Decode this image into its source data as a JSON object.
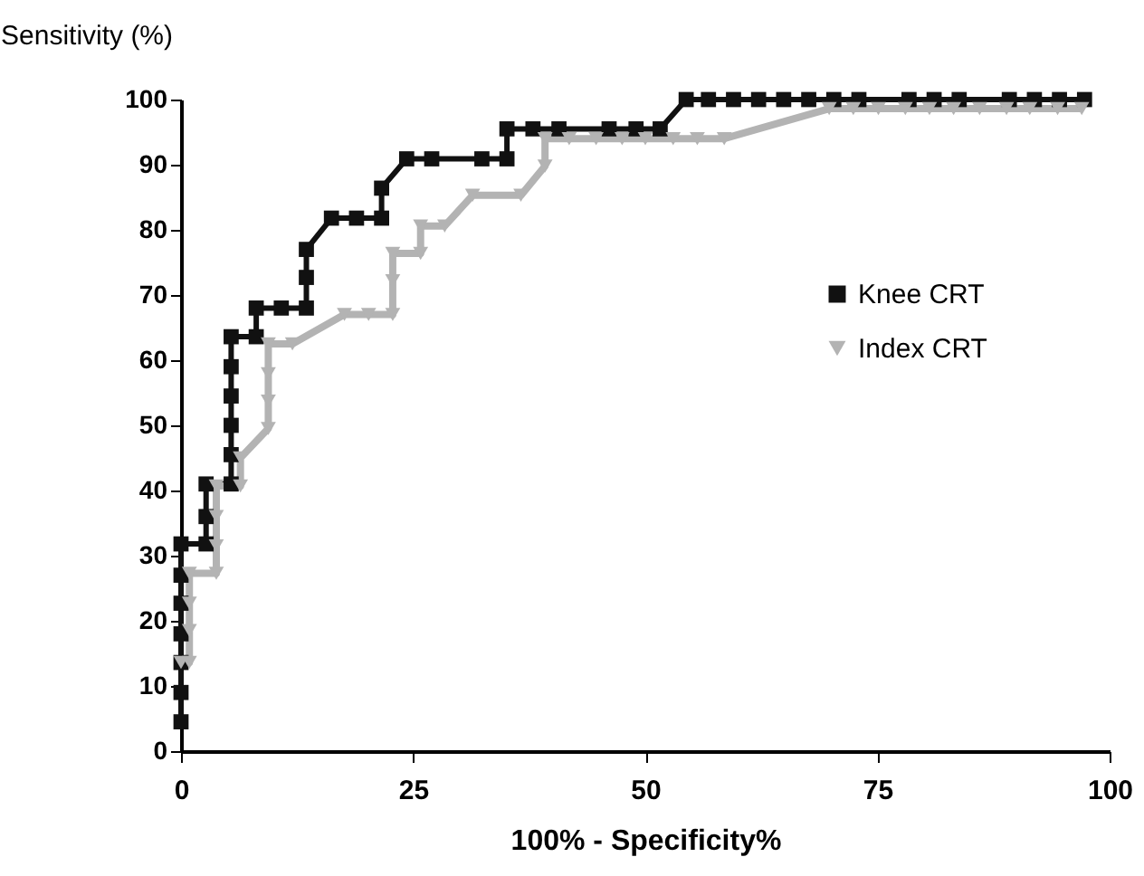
{
  "chart_data": {
    "type": "line",
    "xlabel": "100% - Specificity%",
    "ylabel": "Sensitivity (%)",
    "xlim": [
      0,
      100
    ],
    "ylim": [
      0,
      100
    ],
    "xticks": [
      0,
      25,
      50,
      75,
      100
    ],
    "yticks": [
      0,
      10,
      20,
      30,
      40,
      50,
      60,
      70,
      80,
      90,
      100
    ],
    "grid": false,
    "legend": "right",
    "series": [
      {
        "name": "Knee CRT",
        "color": "#111111",
        "marker": "square",
        "line_style": "solid",
        "x": [
          0,
          0,
          0,
          0,
          0,
          0,
          0,
          2.7,
          2.7,
          2.7,
          5.4,
          5.4,
          5.4,
          5.4,
          5.4,
          5.4,
          8.1,
          8.1,
          10.8,
          13.5,
          13.5,
          13.5,
          16.2,
          18.9,
          21.6,
          21.6,
          24.3,
          27,
          32.4,
          35.1,
          35.1,
          37.9,
          40.7,
          46.1,
          49,
          51.6,
          54.4,
          56.8,
          59.5,
          62.2,
          64.9,
          67.6,
          70.3,
          73,
          78.4,
          81.1,
          83.8,
          89.2,
          91.9,
          94.6,
          97.3
        ],
        "values": [
          4.5,
          9,
          13.6,
          18,
          22.7,
          27,
          31.8,
          31.8,
          36,
          41,
          41,
          45.5,
          50,
          54.5,
          59,
          63.6,
          63.6,
          68,
          68,
          68,
          72.7,
          77,
          81.8,
          81.8,
          81.8,
          86.4,
          90.9,
          90.9,
          90.9,
          90.9,
          95.5,
          95.5,
          95.5,
          95.5,
          95.5,
          95.5,
          100,
          100,
          100,
          100,
          100,
          100,
          100,
          100,
          100,
          100,
          100,
          100,
          100,
          100,
          100
        ]
      },
      {
        "name": "Index CRT",
        "color": "#b3b3b3",
        "marker": "triangle",
        "line_style": "solid",
        "x": [
          0,
          0.9,
          0.9,
          0.9,
          0.9,
          3.8,
          3.8,
          3.8,
          3.8,
          6.4,
          6.4,
          9.4,
          9.4,
          9.4,
          9.4,
          12,
          17.6,
          20.2,
          22.8,
          22.8,
          22.8,
          25.8,
          25.8,
          28.4,
          31.4,
          36.6,
          39.2,
          39.2,
          41.8,
          44.7,
          47.5,
          50,
          53,
          55.6,
          58.5,
          69.8,
          72.4,
          75.1,
          78,
          80.6,
          83.2,
          86,
          88.9,
          91.4,
          94.4,
          97
        ],
        "values": [
          13.6,
          13.6,
          18.5,
          22.7,
          27.3,
          27.3,
          31.5,
          36,
          40.7,
          40.7,
          45,
          49.5,
          53.7,
          57.9,
          62.5,
          62.5,
          67,
          67,
          67,
          72.2,
          76.4,
          76.4,
          80.6,
          80.6,
          85.3,
          85.3,
          89.8,
          94,
          94,
          94,
          94,
          94,
          94,
          94,
          94,
          98.6,
          98.6,
          98.6,
          98.6,
          98.6,
          98.6,
          98.6,
          98.6,
          98.6,
          98.6,
          98.6
        ]
      }
    ]
  }
}
